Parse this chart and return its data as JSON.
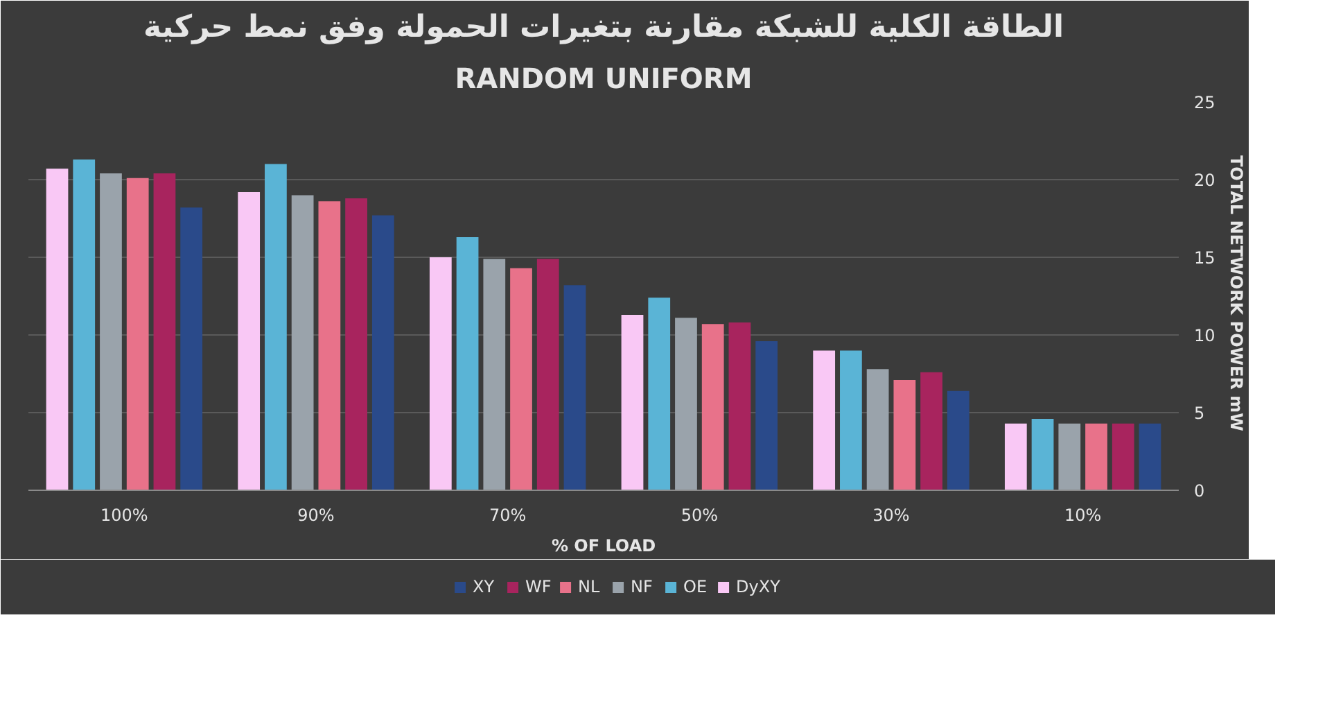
{
  "chart_data": {
    "type": "bar",
    "title": "الطاقة الكلية للشبكة مقارنة بتغيرات الحمولة وفق نمط حركية",
    "subtitle": "RANDOM UNIFORM",
    "xlabel": "% OF LOAD",
    "ylabel": "TOTAL NETWORK POWER  mW",
    "categories": [
      "100%",
      "90%",
      "70%",
      "50%",
      "30%",
      "10%"
    ],
    "series": [
      {
        "name": "DyXY",
        "color": "#f9c8f5",
        "values": [
          20.7,
          19.2,
          15.0,
          11.3,
          9.0,
          4.3
        ]
      },
      {
        "name": "OE",
        "color": "#5ab4d6",
        "values": [
          21.3,
          21.0,
          16.3,
          12.4,
          9.0,
          4.6
        ]
      },
      {
        "name": "NF",
        "color": "#9aa3ab",
        "values": [
          20.4,
          19.0,
          14.9,
          11.1,
          7.8,
          4.3
        ]
      },
      {
        "name": "NL",
        "color": "#e8728a",
        "values": [
          20.1,
          18.6,
          14.3,
          10.7,
          7.1,
          4.3
        ]
      },
      {
        "name": "WF",
        "color": "#a8245e",
        "values": [
          20.4,
          18.8,
          14.9,
          10.8,
          7.6,
          4.3
        ]
      },
      {
        "name": "XY",
        "color": "#2a4a8a",
        "values": [
          18.2,
          17.7,
          13.2,
          9.6,
          6.4,
          4.3
        ]
      }
    ],
    "ylim": [
      0,
      25
    ],
    "yticks": [
      0,
      5,
      10,
      15,
      20,
      25
    ],
    "grid": "y",
    "legend": "bottom"
  }
}
